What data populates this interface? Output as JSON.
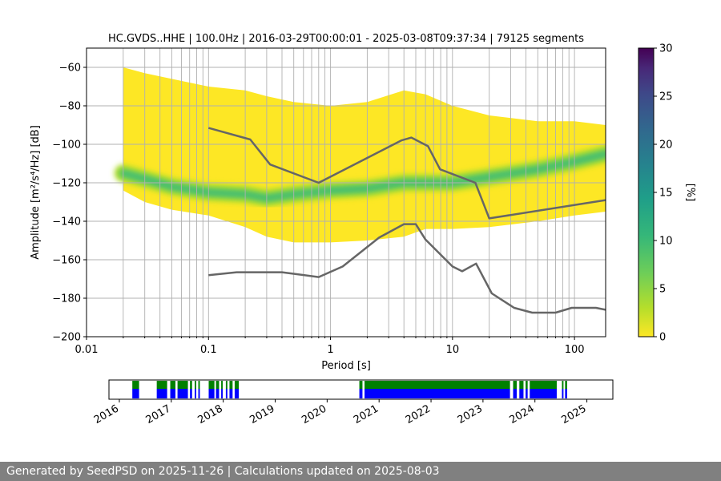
{
  "chart_data": [
    {
      "type": "heatmap",
      "title": "HC.GVDS..HHE | 100.0Hz | 2016-03-29T00:00:01 - 2025-03-08T09:37:34 | 79125 segments",
      "xlabel": "Period [s]",
      "ylabel": "Amplitude [m²/s⁴/Hz] [dB]",
      "x_scale": "log",
      "xlim": [
        0.01,
        180
      ],
      "ylim": [
        -200,
        -50
      ],
      "grid": true,
      "x_ticks": [
        {
          "value": 0.01,
          "label": "0.01"
        },
        {
          "value": 0.1,
          "label": "0.1"
        },
        {
          "value": 1,
          "label": "1"
        },
        {
          "value": 10,
          "label": "10"
        },
        {
          "value": 100,
          "label": "100"
        }
      ],
      "y_ticks": [
        {
          "value": -60,
          "label": "−60"
        },
        {
          "value": -80,
          "label": "−80"
        },
        {
          "value": -100,
          "label": "−100"
        },
        {
          "value": -120,
          "label": "−120"
        },
        {
          "value": -140,
          "label": "−140"
        },
        {
          "value": -160,
          "label": "−160"
        },
        {
          "value": -180,
          "label": "−180"
        },
        {
          "value": -200,
          "label": "−200"
        }
      ],
      "psd_distribution": {
        "periods": [
          0.02,
          0.03,
          0.05,
          0.1,
          0.2,
          0.3,
          0.5,
          1,
          2,
          4,
          6,
          10,
          20,
          50,
          100,
          180
        ],
        "upper_db": [
          -60,
          -63,
          -66,
          -70,
          -72,
          -75,
          -78,
          -80,
          -78,
          -72,
          -74,
          -80,
          -85,
          -88,
          -88,
          -90
        ],
        "lower_db": [
          -124,
          -130,
          -134,
          -137,
          -143,
          -148,
          -151,
          -151,
          -150,
          -148,
          -144,
          -144,
          -143,
          -140,
          -137,
          -135
        ],
        "mode_db": [
          -115,
          -118,
          -122,
          -125,
          -126,
          -128,
          -126,
          -124,
          -123,
          -120,
          -120,
          -120,
          -117,
          -113,
          -109,
          -105
        ]
      },
      "colorbar": {
        "label": "[%]",
        "min": 0,
        "max": 30,
        "ticks": [
          0,
          5,
          10,
          15,
          20,
          25,
          30
        ],
        "colormap": "viridis_r"
      },
      "series": [
        {
          "name": "",
          "values": [
            {
              "x": 0.1,
              "y": -91.5
            },
            {
              "x": 0.22,
              "y": -97.5
            },
            {
              "x": 0.32,
              "y": -110.5
            },
            {
              "x": 0.8,
              "y": -120
            },
            {
              "x": 3.8,
              "y": -98
            },
            {
              "x": 4.6,
              "y": -96.5
            },
            {
              "x": 6.3,
              "y": -101
            },
            {
              "x": 7.9,
              "y": -113
            },
            {
              "x": 15.4,
              "y": -120
            },
            {
              "x": 20,
              "y": -138.5
            },
            {
              "x": 180,
              "y": -129
            }
          ],
          "color": "#666666"
        },
        {
          "name": "",
          "values": [
            {
              "x": 0.1,
              "y": -168
            },
            {
              "x": 0.17,
              "y": -166.5
            },
            {
              "x": 0.4,
              "y": -166.5
            },
            {
              "x": 0.8,
              "y": -169
            },
            {
              "x": 1.26,
              "y": -163.5
            },
            {
              "x": 2.5,
              "y": -148.5
            },
            {
              "x": 4,
              "y": -141.5
            },
            {
              "x": 5,
              "y": -141.5
            },
            {
              "x": 6,
              "y": -149.5
            },
            {
              "x": 10,
              "y": -163.5
            },
            {
              "x": 12,
              "y": -166
            },
            {
              "x": 15.6,
              "y": -162
            },
            {
              "x": 21,
              "y": -177.5
            },
            {
              "x": 32,
              "y": -185
            },
            {
              "x": 45,
              "y": -187.5
            },
            {
              "x": 70,
              "y": -187.5
            },
            {
              "x": 95,
              "y": -185
            },
            {
              "x": 150,
              "y": -185
            },
            {
              "x": 180,
              "y": -186
            }
          ],
          "color": "#666666"
        }
      ]
    },
    {
      "type": "bar",
      "title": "",
      "xlabel": "",
      "ylabel": "",
      "x_ticks": [
        "2016",
        "2017",
        "2018",
        "2019",
        "2020",
        "2021",
        "2022",
        "2023",
        "2024",
        "2025"
      ],
      "xlim": [
        2015.8,
        2025.5
      ],
      "coverage_segments": [
        [
          2016.25,
          2016.38
        ],
        [
          2016.72,
          2016.92
        ],
        [
          2016.98,
          2017.08
        ],
        [
          2017.12,
          2017.32
        ],
        [
          2017.36,
          2017.4
        ],
        [
          2017.45,
          2017.48
        ],
        [
          2017.52,
          2017.55
        ],
        [
          2017.72,
          2017.83
        ],
        [
          2017.86,
          2017.92
        ],
        [
          2017.96,
          2017.99
        ],
        [
          2018.05,
          2018.08
        ],
        [
          2018.12,
          2018.18
        ],
        [
          2018.22,
          2018.3
        ],
        [
          2020.62,
          2020.68
        ],
        [
          2020.72,
          2023.52
        ],
        [
          2023.58,
          2023.65
        ],
        [
          2023.7,
          2023.78
        ],
        [
          2023.82,
          2023.86
        ],
        [
          2023.9,
          2024.42
        ],
        [
          2024.52,
          2024.55
        ],
        [
          2024.58,
          2024.62
        ]
      ],
      "colors": {
        "top": "#008000",
        "bottom": "#0000ff"
      }
    }
  ],
  "footer": {
    "text": "Generated by SeedPSD on 2025-11-26 | Calculations updated on 2025-08-03"
  }
}
